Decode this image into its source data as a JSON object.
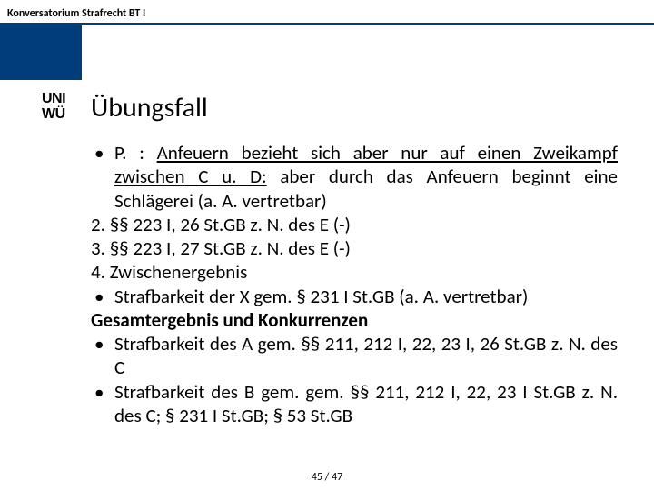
{
  "colors": {
    "accent": "#003d7a",
    "text": "#000000",
    "page_num": "#555555"
  },
  "header": "Konversatorium Strafrecht BT I",
  "logo": {
    "line1": "UNI",
    "line2": "WÜ"
  },
  "title": "Übungsfall",
  "body": {
    "p1_prefix": "P. :",
    "p1_under": "Anfeuern bezieht sich aber nur auf einen Zwei­kampf zwischen C u. D:",
    "p1_rest": " aber durch das Anfeuern beginnt eine Schlägerei (a. A. vertretbar)",
    "n2": "2. §§ 223 I, 26 St.GB z. N. des E (-)",
    "n3": "3. §§ 223 I, 27 St.GB z. N. des E (-)",
    "n4": "4. Zwischenergebnis",
    "b5": "Strafbarkeit der X gem. § 231 I St.GB (a. A. vertretbar)",
    "h6": "Gesamtergebnis und Konkurrenzen",
    "b7": "Strafbarkeit des A gem. §§ 211, 212 I, 22, 23 I, 26 St.GB z. N. des C",
    "b8": "Strafbarkeit des B gem. gem. §§ 211, 212 I, 22, 23 I St.GB z. N. des C; § 231 I St.GB; § 53 St.GB"
  },
  "page": "45 / 47"
}
